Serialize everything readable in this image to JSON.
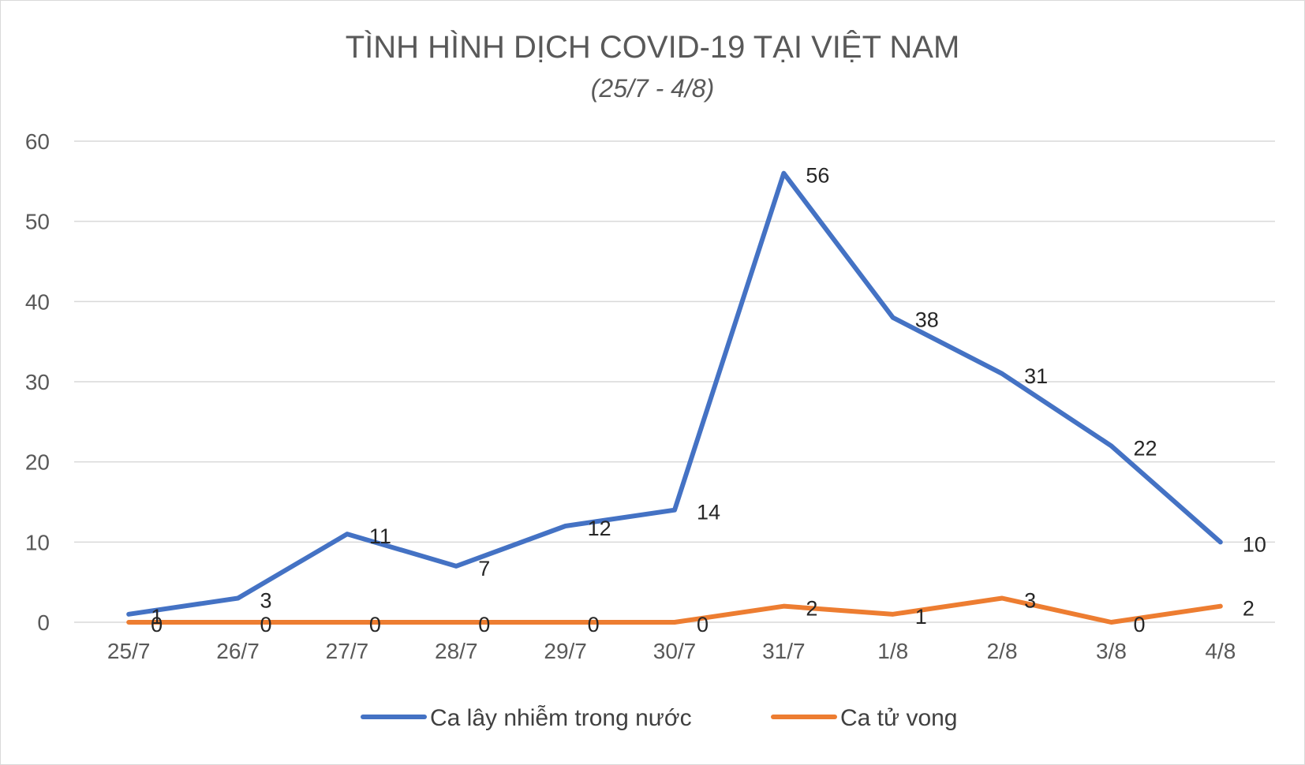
{
  "chart_data": {
    "type": "line",
    "title": "TÌNH HÌNH DỊCH COVID-19 TẠI VIỆT NAM",
    "subtitle": "(25/7 - 4/8)",
    "xlabel": "",
    "ylabel": "",
    "categories": [
      "25/7",
      "26/7",
      "27/7",
      "28/7",
      "29/7",
      "30/7",
      "31/7",
      "1/8",
      "2/8",
      "3/8",
      "4/8"
    ],
    "ylim": [
      0,
      60
    ],
    "yticks": [
      0,
      10,
      20,
      30,
      40,
      50,
      60
    ],
    "grid": true,
    "legend_position": "bottom",
    "series": [
      {
        "name": "Ca lây nhiễm trong nước",
        "color": "#4472C4",
        "values": [
          1,
          3,
          11,
          7,
          12,
          14,
          56,
          38,
          31,
          22,
          10
        ]
      },
      {
        "name": "Ca tử vong",
        "color": "#ED7D31",
        "values": [
          0,
          0,
          0,
          0,
          0,
          0,
          2,
          1,
          3,
          0,
          2
        ]
      }
    ]
  }
}
